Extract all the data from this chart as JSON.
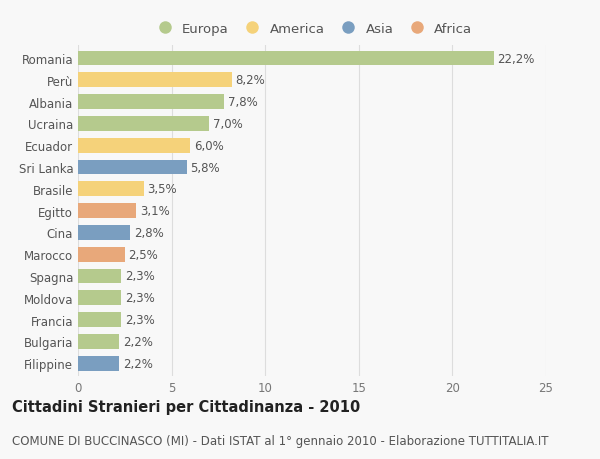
{
  "countries": [
    "Romania",
    "Perù",
    "Albania",
    "Ucraina",
    "Ecuador",
    "Sri Lanka",
    "Brasile",
    "Egitto",
    "Cina",
    "Marocco",
    "Spagna",
    "Moldova",
    "Francia",
    "Bulgaria",
    "Filippine"
  ],
  "values": [
    22.2,
    8.2,
    7.8,
    7.0,
    6.0,
    5.8,
    3.5,
    3.1,
    2.8,
    2.5,
    2.3,
    2.3,
    2.3,
    2.2,
    2.2
  ],
  "labels": [
    "22,2%",
    "8,2%",
    "7,8%",
    "7,0%",
    "6,0%",
    "5,8%",
    "3,5%",
    "3,1%",
    "2,8%",
    "2,5%",
    "2,3%",
    "2,3%",
    "2,3%",
    "2,2%",
    "2,2%"
  ],
  "continents": [
    "Europa",
    "America",
    "Europa",
    "Europa",
    "America",
    "Asia",
    "America",
    "Africa",
    "Asia",
    "Africa",
    "Europa",
    "Europa",
    "Europa",
    "Europa",
    "Asia"
  ],
  "continent_colors": {
    "Europa": "#b5ca8d",
    "America": "#f5d27a",
    "Asia": "#7a9ec0",
    "Africa": "#e8a87a"
  },
  "legend_order": [
    "Europa",
    "America",
    "Asia",
    "Africa"
  ],
  "legend_colors": [
    "#b5ca8d",
    "#f5d27a",
    "#7a9ec0",
    "#e8a87a"
  ],
  "title": "Cittadini Stranieri per Cittadinanza - 2010",
  "subtitle": "COMUNE DI BUCCINASCO (MI) - Dati ISTAT al 1° gennaio 2010 - Elaborazione TUTTITALIA.IT",
  "xlim": [
    0,
    25
  ],
  "xticks": [
    0,
    5,
    10,
    15,
    20,
    25
  ],
  "background_color": "#f8f8f8",
  "bar_height": 0.68,
  "grid_color": "#dddddd",
  "title_fontsize": 10.5,
  "subtitle_fontsize": 8.5,
  "label_fontsize": 8.5,
  "tick_fontsize": 8.5,
  "legend_fontsize": 9.5
}
